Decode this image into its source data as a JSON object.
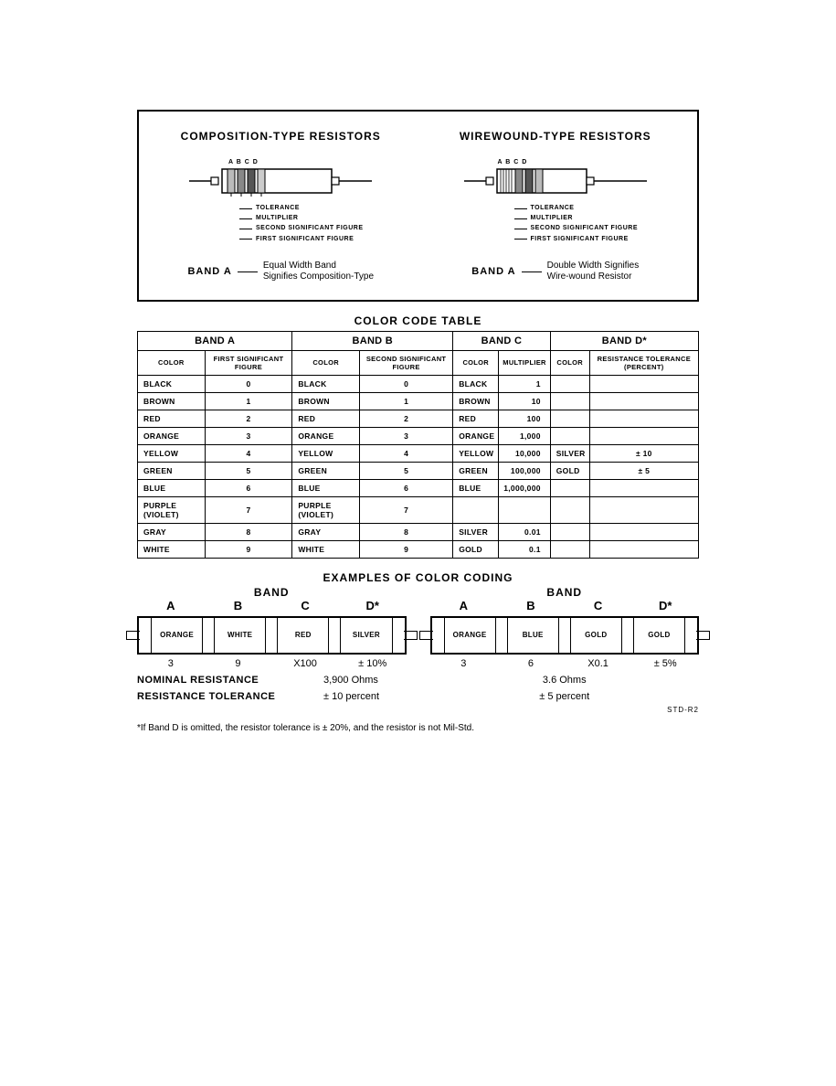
{
  "top": {
    "left": {
      "title": "COMPOSITION-TYPE RESISTORS",
      "letters": "A  B  C  D",
      "callouts": [
        "TOLERANCE",
        "MULTIPLIER",
        "SECOND SIGNIFICANT FIGURE",
        "FIRST SIGNIFICANT FIGURE"
      ],
      "bandA_label": "BAND A",
      "bandA_desc1": "Equal Width Band",
      "bandA_desc2": "Signifies Composition-Type"
    },
    "right": {
      "title": "WIREWOUND-TYPE RESISTORS",
      "letters": "A   B  C  D",
      "callouts": [
        "TOLERANCE",
        "MULTIPLIER",
        "SECOND SIGNIFICANT FIGURE",
        "FIRST SIGNIFICANT FIGURE"
      ],
      "bandA_label": "BAND A",
      "bandA_desc1": "Double Width Signifies",
      "bandA_desc2": "Wire-wound Resistor"
    }
  },
  "table": {
    "title": "COLOR CODE TABLE",
    "headers": {
      "bandA": "BAND A",
      "bandB": "BAND B",
      "bandC": "BAND C",
      "bandD": "BAND D*",
      "color": "COLOR",
      "subA": "FIRST SIGNIFICANT FIGURE",
      "subB": "SECOND SIGNIFICANT FIGURE",
      "subC": "MULTIPLIER",
      "subD": "RESISTANCE TOLERANCE (PERCENT)"
    },
    "rows": [
      {
        "a_color": "BLACK",
        "a": "0",
        "b_color": "BLACK",
        "b": "0",
        "c_color": "BLACK",
        "c": "1",
        "d_color": "",
        "d": ""
      },
      {
        "a_color": "BROWN",
        "a": "1",
        "b_color": "BROWN",
        "b": "1",
        "c_color": "BROWN",
        "c": "10",
        "d_color": "",
        "d": ""
      },
      {
        "a_color": "RED",
        "a": "2",
        "b_color": "RED",
        "b": "2",
        "c_color": "RED",
        "c": "100",
        "d_color": "",
        "d": ""
      },
      {
        "a_color": "ORANGE",
        "a": "3",
        "b_color": "ORANGE",
        "b": "3",
        "c_color": "ORANGE",
        "c": "1,000",
        "d_color": "",
        "d": ""
      },
      {
        "a_color": "YELLOW",
        "a": "4",
        "b_color": "YELLOW",
        "b": "4",
        "c_color": "YELLOW",
        "c": "10,000",
        "d_color": "SILVER",
        "d": "± 10"
      },
      {
        "a_color": "GREEN",
        "a": "5",
        "b_color": "GREEN",
        "b": "5",
        "c_color": "GREEN",
        "c": "100,000",
        "d_color": "GOLD",
        "d": "± 5"
      },
      {
        "a_color": "BLUE",
        "a": "6",
        "b_color": "BLUE",
        "b": "6",
        "c_color": "BLUE",
        "c": "1,000,000",
        "d_color": "",
        "d": ""
      },
      {
        "a_color": "PURPLE (VIOLET)",
        "a": "7",
        "b_color": "PURPLE (VIOLET)",
        "b": "7",
        "c_color": "",
        "c": "",
        "d_color": "",
        "d": ""
      },
      {
        "a_color": "GRAY",
        "a": "8",
        "b_color": "GRAY",
        "b": "8",
        "c_color": "SILVER",
        "c": "0.01",
        "d_color": "",
        "d": ""
      },
      {
        "a_color": "WHITE",
        "a": "9",
        "b_color": "WHITE",
        "b": "9",
        "c_color": "GOLD",
        "c": "0.1",
        "d_color": "",
        "d": ""
      }
    ]
  },
  "examples": {
    "title": "EXAMPLES OF COLOR CODING",
    "band_word": "BAND",
    "letters": [
      "A",
      "B",
      "C",
      "D*"
    ],
    "left": {
      "bands": [
        "ORANGE",
        "WHITE",
        "RED",
        "SILVER"
      ],
      "values": [
        "3",
        "9",
        "X100",
        "± 10%"
      ],
      "nominal_label": "NOMINAL RESISTANCE",
      "nominal_value": "3,900 Ohms",
      "tolerance_label": "RESISTANCE TOLERANCE",
      "tolerance_value": "± 10 percent"
    },
    "right": {
      "bands": [
        "ORANGE",
        "BLUE",
        "GOLD",
        "GOLD"
      ],
      "values": [
        "3",
        "6",
        "X0.1",
        "± 5%"
      ],
      "nominal_value": "3.6 Ohms",
      "tolerance_value": "± 5 percent"
    },
    "std": "STD-R2"
  },
  "footnote": "*If Band D is omitted, the resistor tolerance is ± 20%, and the resistor is not Mil-Std."
}
